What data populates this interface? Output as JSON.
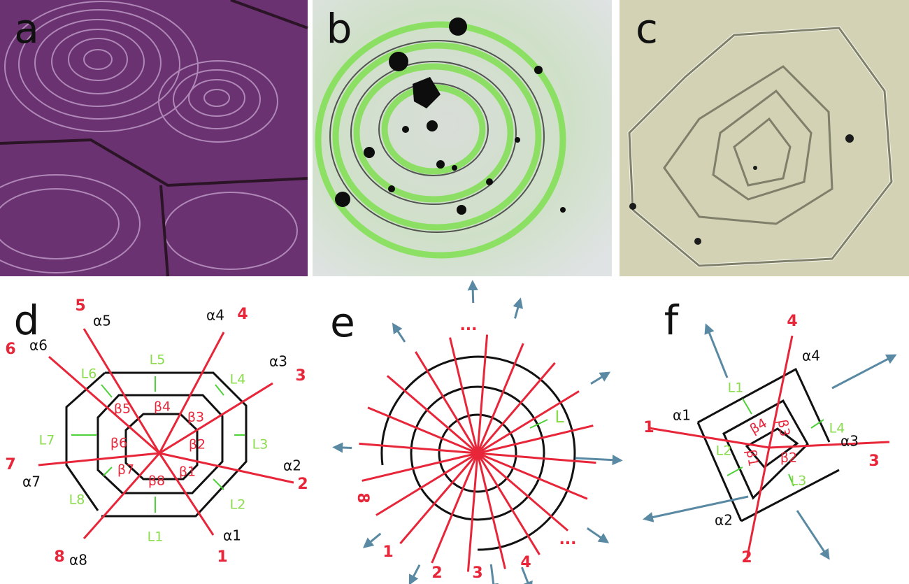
{
  "panel_labels": [
    "a",
    "b",
    "c",
    "d",
    "e",
    "f"
  ],
  "d": {
    "lines": [
      "1",
      "2",
      "3",
      "4",
      "5",
      "6",
      "7",
      "8"
    ],
    "alphas": [
      "α1",
      "α2",
      "α3",
      "α4",
      "α5",
      "α6",
      "α7",
      "α8"
    ],
    "betas": [
      "β1",
      "β2",
      "β3",
      "β4",
      "β5",
      "β6",
      "β7",
      "β8"
    ],
    "spacings": [
      "L1",
      "L2",
      "L3",
      "L4",
      "L5",
      "L6",
      "L7",
      "L8"
    ]
  },
  "e": {
    "lines": [
      "1",
      "2",
      "3",
      "4"
    ],
    "line_left": "8",
    "ellipsis_top": "...",
    "ellipsis_bottom": "...",
    "spacing": "L"
  },
  "f": {
    "lines": [
      "1",
      "2",
      "3",
      "4"
    ],
    "alphas": [
      "α1",
      "α2",
      "α3",
      "α4"
    ],
    "betas": [
      "β1",
      "β2",
      "β3",
      "β4"
    ],
    "spacings": [
      "L1",
      "L2",
      "L3",
      "L4"
    ]
  }
}
